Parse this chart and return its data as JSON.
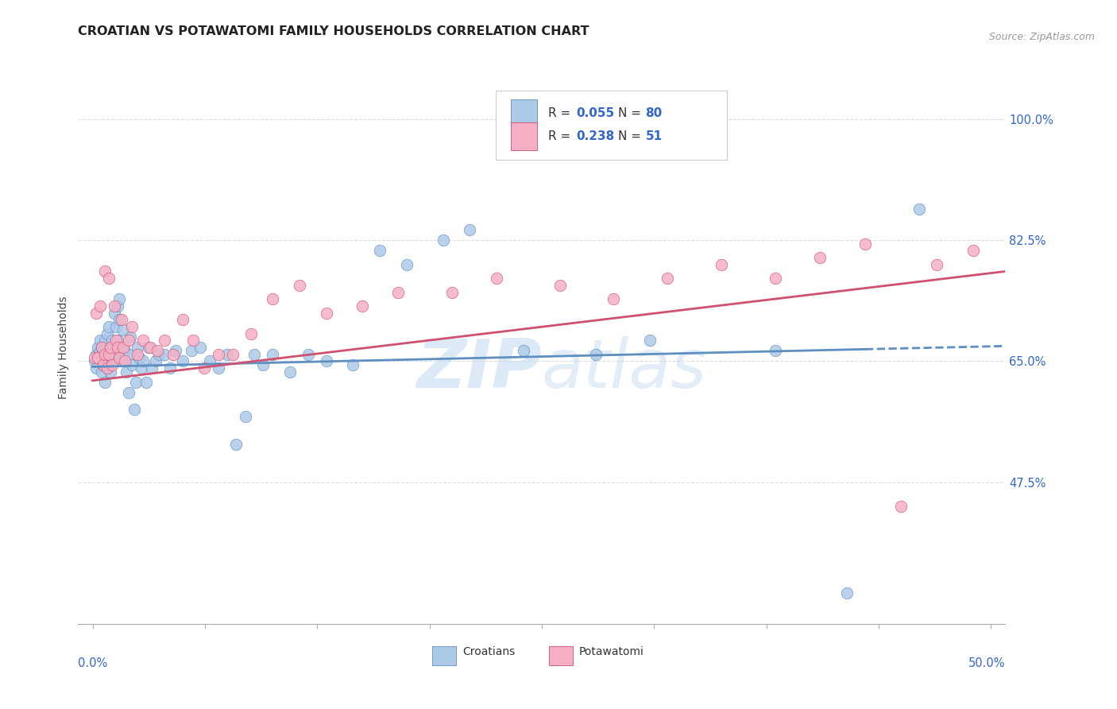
{
  "title": "CROATIAN VS POTAWATOMI FAMILY HOUSEHOLDS CORRELATION CHART",
  "source": "Source: ZipAtlas.com",
  "ylabel": "Family Households",
  "ytick_vals": [
    0.475,
    0.65,
    0.825,
    1.0
  ],
  "ytick_labels": [
    "47.5%",
    "65.0%",
    "82.5%",
    "100.0%"
  ],
  "xlim": [
    -0.008,
    0.508
  ],
  "ylim": [
    0.27,
    1.07
  ],
  "croatian_fill": "#adc9e8",
  "croatian_edge": "#5e8fc0",
  "potawatomi_fill": "#f5b0c5",
  "potawatomi_edge": "#d05070",
  "trend_blue": "#5e8fc0",
  "trend_pink": "#d05070",
  "legend_color_value": "#3366cc",
  "legend_color_label": "#222222",
  "grid_color": "#dddddd",
  "watermark_color": "#c0d8f0",
  "title_color": "#222222",
  "tick_color": "#3366cc",
  "legend_R_cro": "0.055",
  "legend_N_cro": "80",
  "legend_R_pot": "0.238",
  "legend_N_pot": "51",
  "cro_x": [
    0.001,
    0.002,
    0.002,
    0.003,
    0.003,
    0.004,
    0.004,
    0.005,
    0.005,
    0.006,
    0.006,
    0.007,
    0.007,
    0.008,
    0.008,
    0.008,
    0.009,
    0.009,
    0.009,
    0.01,
    0.01,
    0.01,
    0.011,
    0.011,
    0.012,
    0.012,
    0.013,
    0.013,
    0.014,
    0.014,
    0.015,
    0.015,
    0.016,
    0.016,
    0.017,
    0.018,
    0.019,
    0.02,
    0.02,
    0.021,
    0.022,
    0.023,
    0.024,
    0.025,
    0.026,
    0.027,
    0.028,
    0.03,
    0.031,
    0.033,
    0.035,
    0.037,
    0.04,
    0.043,
    0.046,
    0.05,
    0.055,
    0.06,
    0.065,
    0.07,
    0.075,
    0.08,
    0.085,
    0.09,
    0.095,
    0.1,
    0.11,
    0.12,
    0.13,
    0.145,
    0.16,
    0.175,
    0.195,
    0.21,
    0.24,
    0.28,
    0.31,
    0.38,
    0.42,
    0.46
  ],
  "cro_y": [
    0.65,
    0.66,
    0.64,
    0.67,
    0.655,
    0.665,
    0.68,
    0.635,
    0.67,
    0.645,
    0.665,
    0.68,
    0.62,
    0.66,
    0.69,
    0.64,
    0.7,
    0.65,
    0.66,
    0.67,
    0.635,
    0.655,
    0.68,
    0.66,
    0.72,
    0.66,
    0.65,
    0.7,
    0.73,
    0.68,
    0.71,
    0.74,
    0.67,
    0.65,
    0.695,
    0.665,
    0.635,
    0.605,
    0.66,
    0.685,
    0.645,
    0.58,
    0.62,
    0.67,
    0.655,
    0.64,
    0.65,
    0.62,
    0.67,
    0.64,
    0.65,
    0.66,
    0.66,
    0.64,
    0.665,
    0.65,
    0.665,
    0.67,
    0.65,
    0.64,
    0.66,
    0.53,
    0.57,
    0.66,
    0.645,
    0.66,
    0.635,
    0.66,
    0.65,
    0.645,
    0.81,
    0.79,
    0.825,
    0.84,
    0.665,
    0.66,
    0.68,
    0.665,
    0.315,
    0.87
  ],
  "pot_x": [
    0.001,
    0.002,
    0.003,
    0.004,
    0.005,
    0.006,
    0.007,
    0.007,
    0.008,
    0.009,
    0.009,
    0.01,
    0.011,
    0.012,
    0.013,
    0.014,
    0.015,
    0.016,
    0.017,
    0.018,
    0.02,
    0.022,
    0.025,
    0.028,
    0.032,
    0.036,
    0.04,
    0.045,
    0.05,
    0.056,
    0.062,
    0.07,
    0.078,
    0.088,
    0.1,
    0.115,
    0.13,
    0.15,
    0.17,
    0.2,
    0.225,
    0.26,
    0.29,
    0.32,
    0.35,
    0.38,
    0.405,
    0.43,
    0.45,
    0.47,
    0.49
  ],
  "pot_y": [
    0.655,
    0.72,
    0.655,
    0.73,
    0.67,
    0.645,
    0.78,
    0.66,
    0.64,
    0.77,
    0.66,
    0.67,
    0.645,
    0.73,
    0.68,
    0.67,
    0.655,
    0.71,
    0.67,
    0.65,
    0.68,
    0.7,
    0.66,
    0.68,
    0.67,
    0.665,
    0.68,
    0.66,
    0.71,
    0.68,
    0.64,
    0.66,
    0.66,
    0.69,
    0.74,
    0.76,
    0.72,
    0.73,
    0.75,
    0.75,
    0.77,
    0.76,
    0.74,
    0.77,
    0.79,
    0.77,
    0.8,
    0.82,
    0.44,
    0.79,
    0.81
  ],
  "trend_cro_x0": 0.0,
  "trend_cro_x1": 0.508,
  "trend_cro_y0": 0.642,
  "trend_cro_y1": 0.672,
  "trend_cro_dash_start": 0.43,
  "trend_pot_x0": 0.0,
  "trend_pot_x1": 0.508,
  "trend_pot_y0": 0.622,
  "trend_pot_y1": 0.78
}
